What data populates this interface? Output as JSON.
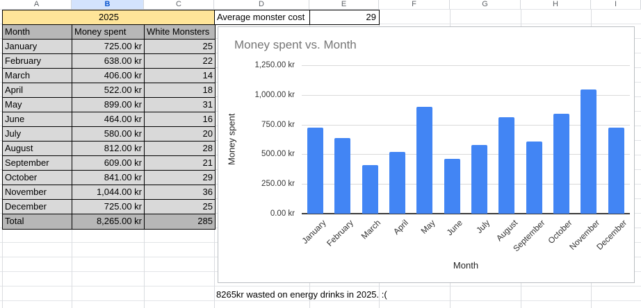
{
  "sheet": {
    "column_headers": [
      "A",
      "B",
      "C",
      "D",
      "E",
      "F",
      "G",
      "H",
      "I"
    ],
    "highlighted_column": "B",
    "table": {
      "title": "2025",
      "headers": [
        "Month",
        "Money spent",
        "White Monsters"
      ],
      "rows": [
        [
          "January",
          "725.00 kr",
          "25"
        ],
        [
          "February",
          "638.00 kr",
          "22"
        ],
        [
          "March",
          "406.00 kr",
          "14"
        ],
        [
          "April",
          "522.00 kr",
          "18"
        ],
        [
          "May",
          "899.00 kr",
          "31"
        ],
        [
          "June",
          "464.00 kr",
          "16"
        ],
        [
          "July",
          "580.00 kr",
          "20"
        ],
        [
          "August",
          "812.00 kr",
          "28"
        ],
        [
          "September",
          "609.00 kr",
          "21"
        ],
        [
          "October",
          "841.00 kr",
          "29"
        ],
        [
          "November",
          "1,044.00 kr",
          "36"
        ],
        [
          "December",
          "725.00 kr",
          "25"
        ]
      ],
      "total_row": [
        "Total",
        "8,265.00 kr",
        "285"
      ]
    },
    "side": {
      "label": "Average monster cost",
      "value": "29"
    },
    "note": "8265kr wasted on energy drinks in 2025. :("
  },
  "chart_data": {
    "type": "bar",
    "title": "Money spent vs. Month",
    "xlabel": "Month",
    "ylabel": "Money spent",
    "categories": [
      "January",
      "February",
      "March",
      "April",
      "May",
      "June",
      "July",
      "August",
      "September",
      "October",
      "November",
      "December"
    ],
    "values": [
      725,
      638,
      406,
      522,
      899,
      464,
      580,
      812,
      609,
      841,
      1044,
      725
    ],
    "ylim": [
      0,
      1250
    ],
    "ytick_step": 250,
    "ytick_labels": [
      "0.00 kr",
      "250.00 kr",
      "500.00 kr",
      "750.00 kr",
      "1,000.00 kr",
      "1,250.00 kr"
    ],
    "grid": true,
    "legend_position": "none",
    "bar_color": "#4285f4"
  },
  "colors": {
    "bar": "#4285f4",
    "year_cell_bg": "#ffe599",
    "header_row_bg": "#b7b7b7",
    "data_row_bg": "#d9d9d9",
    "total_row_bg": "#b7b7b7",
    "selected_column_header_bg": "#d3e3fd",
    "selected_column_header_text": "#0b57d0",
    "chart_title_text": "#757575"
  }
}
